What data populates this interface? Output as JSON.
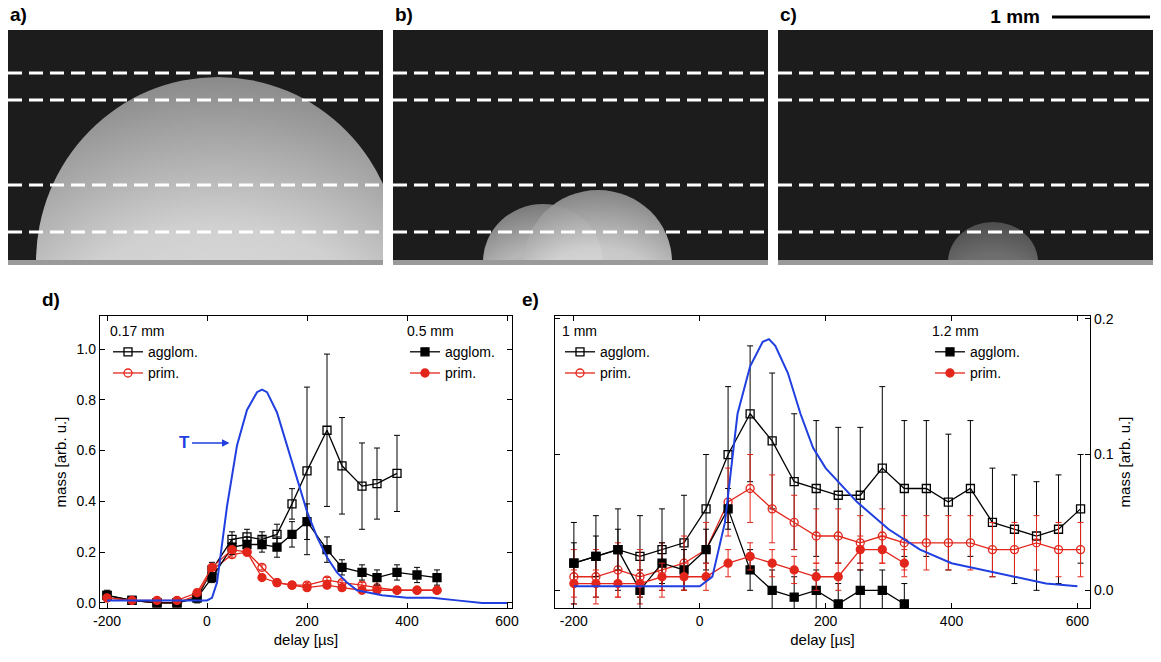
{
  "images": {
    "panels": [
      {
        "label": "a)"
      },
      {
        "label": "b)"
      },
      {
        "label": "c)"
      }
    ],
    "scale_bar": "1 mm"
  },
  "chart_data": [
    {
      "type": "scatter",
      "label": "d)",
      "xlabel": "delay [µs]",
      "ylabel": "mass [arb. u.]",
      "xlim": [
        -214,
        610
      ],
      "xticks": [
        -200,
        0,
        200,
        400,
        600
      ],
      "ylim": [
        -0.02,
        1.13
      ],
      "yticks": [
        {
          "value": 0,
          "label": "0.0"
        },
        0.2,
        0.4,
        0.6,
        0.8,
        {
          "value": 1,
          "label": "1.0"
        }
      ],
      "annotations": [
        {
          "text": "T",
          "x": 45,
          "y": 0.63,
          "arrow_from": [
            -30,
            0.63
          ]
        }
      ],
      "series": [
        {
          "name": "agglom.",
          "group": "0.17 mm",
          "color": "#000000",
          "marker": "square-open",
          "x": [
            -200,
            -150,
            -100,
            -60,
            -20,
            10,
            50,
            80,
            110,
            140,
            170,
            200,
            240,
            270,
            310,
            340,
            380
          ],
          "values": [
            0.03,
            0.01,
            0.0,
            0.0,
            0.02,
            0.13,
            0.25,
            0.26,
            0.25,
            0.27,
            0.39,
            0.52,
            0.68,
            0.54,
            0.46,
            0.47,
            0.51
          ],
          "errors": [
            0.02,
            0.01,
            0.01,
            0.01,
            0.02,
            0.03,
            0.03,
            0.03,
            0.03,
            0.04,
            0.06,
            0.33,
            0.3,
            0.19,
            0.17,
            0.14,
            0.15
          ]
        },
        {
          "name": "prim.",
          "group": "0.17 mm",
          "color": "#e3261b",
          "marker": "circle-open",
          "x": [
            -200,
            -150,
            -100,
            -60,
            -20,
            10,
            50,
            80,
            110,
            140,
            170,
            200,
            240,
            270,
            310,
            340,
            380,
            420,
            460
          ],
          "values": [
            0.02,
            0.01,
            0.0,
            0.0,
            0.03,
            0.13,
            0.19,
            0.2,
            0.14,
            0.08,
            0.07,
            0.07,
            0.09,
            0.08,
            0.07,
            0.06,
            0.05,
            0.05,
            0.05
          ],
          "errors": [
            0.01,
            0.01,
            0.01,
            0.01,
            0.01,
            0.01,
            0.01,
            0.01,
            0.01,
            0.01,
            0.01,
            0.01,
            0.01,
            0.01,
            0.01,
            0.01,
            0.01,
            0.01,
            0.01
          ]
        },
        {
          "name": "agglom.",
          "group": "0.5 mm",
          "color": "#000000",
          "marker": "square",
          "x": [
            -200,
            -150,
            -100,
            -60,
            -20,
            10,
            50,
            80,
            110,
            140,
            170,
            200,
            240,
            270,
            310,
            340,
            380,
            420,
            460
          ],
          "values": [
            0.03,
            0.01,
            0.0,
            0.0,
            0.02,
            0.1,
            0.22,
            0.23,
            0.23,
            0.22,
            0.27,
            0.32,
            0.21,
            0.14,
            0.12,
            0.1,
            0.12,
            0.11,
            0.1
          ],
          "errors": [
            0.01,
            0.01,
            0.01,
            0.01,
            0.01,
            0.02,
            0.03,
            0.03,
            0.03,
            0.04,
            0.05,
            0.07,
            0.05,
            0.03,
            0.03,
            0.03,
            0.03,
            0.03,
            0.03
          ]
        },
        {
          "name": "prim.",
          "group": "0.5 mm",
          "color": "#e3261b",
          "marker": "circle",
          "x": [
            -200,
            -150,
            -100,
            -60,
            -20,
            10,
            50,
            80,
            110,
            140,
            170,
            200,
            240,
            270,
            310,
            340,
            380,
            420,
            460
          ],
          "values": [
            0.02,
            0.01,
            0.01,
            0.01,
            0.04,
            0.14,
            0.21,
            0.2,
            0.1,
            0.08,
            0.07,
            0.06,
            0.07,
            0.06,
            0.05,
            0.05,
            0.05,
            0.05,
            0.05
          ],
          "errors": [
            0.01,
            0.01,
            0.01,
            0.01,
            0.01,
            0.01,
            0.01,
            0.01,
            0.01,
            0.01,
            0.01,
            0.01,
            0.01,
            0.01,
            0.01,
            0.01,
            0.01,
            0.01,
            0.01
          ]
        },
        {
          "type": "line",
          "color": "#1f3fe0",
          "x": [
            -200,
            -100,
            0,
            10,
            20,
            40,
            60,
            80,
            100,
            110,
            120,
            140,
            160,
            180,
            200,
            220,
            240,
            260,
            280,
            300,
            350,
            400,
            450,
            500,
            550,
            600
          ],
          "values": [
            0.01,
            0.01,
            0.01,
            0.02,
            0.08,
            0.38,
            0.62,
            0.76,
            0.83,
            0.84,
            0.83,
            0.75,
            0.62,
            0.48,
            0.36,
            0.26,
            0.18,
            0.12,
            0.08,
            0.05,
            0.03,
            0.02,
            0.02,
            0.01,
            0.0,
            0.0
          ]
        }
      ]
    },
    {
      "type": "scatter",
      "label": "e)",
      "xlabel": "delay [µs]",
      "y2label": "mass [arb. u.]",
      "xlim": [
        -230,
        620
      ],
      "xticks": [
        -200,
        0,
        200,
        400,
        600
      ],
      "y2lim": [
        -0.013,
        0.202
      ],
      "y2ticks": [
        {
          "value": 0,
          "label": "0.0"
        },
        0.1,
        0.2
      ],
      "series": [
        {
          "name": "agglom.",
          "group": "1 mm",
          "axis": "y2",
          "color": "#000000",
          "marker": "square-open",
          "x": [
            -200,
            -165,
            -130,
            -95,
            -60,
            -25,
            10,
            45,
            80,
            115,
            150,
            185,
            220,
            255,
            290,
            325,
            360,
            395,
            430,
            465,
            500,
            535,
            570,
            605
          ],
          "values": [
            0.02,
            0.025,
            0.03,
            0.025,
            0.03,
            0.035,
            0.06,
            0.1,
            0.13,
            0.11,
            0.08,
            0.075,
            0.07,
            0.07,
            0.09,
            0.075,
            0.075,
            0.065,
            0.075,
            0.05,
            0.045,
            0.04,
            0.045,
            0.06
          ],
          "errors": [
            0.03,
            0.03,
            0.03,
            0.03,
            0.03,
            0.035,
            0.04,
            0.05,
            0.05,
            0.05,
            0.05,
            0.05,
            0.05,
            0.05,
            0.06,
            0.05,
            0.05,
            0.05,
            0.05,
            0.04,
            0.04,
            0.04,
            0.04,
            0.04
          ]
        },
        {
          "name": "prim.",
          "group": "1 mm",
          "axis": "y2",
          "color": "#e3261b",
          "marker": "circle-open",
          "x": [
            -200,
            -165,
            -130,
            -95,
            -60,
            -25,
            10,
            45,
            80,
            115,
            150,
            185,
            220,
            255,
            290,
            325,
            360,
            395,
            430,
            465,
            500,
            535,
            570,
            605
          ],
          "values": [
            0.01,
            0.01,
            0.015,
            0.01,
            0.015,
            0.02,
            0.03,
            0.065,
            0.075,
            0.06,
            0.05,
            0.04,
            0.04,
            0.035,
            0.04,
            0.035,
            0.035,
            0.035,
            0.035,
            0.03,
            0.03,
            0.035,
            0.03,
            0.03
          ],
          "errors": [
            0.02,
            0.02,
            0.02,
            0.02,
            0.02,
            0.02,
            0.02,
            0.025,
            0.025,
            0.025,
            0.02,
            0.02,
            0.02,
            0.02,
            0.02,
            0.02,
            0.02,
            0.02,
            0.02,
            0.02,
            0.02,
            0.02,
            0.02,
            0.02
          ]
        },
        {
          "name": "agglom.",
          "group": "1.2 mm",
          "axis": "y2",
          "color": "#000000",
          "marker": "square",
          "x": [
            -200,
            -165,
            -130,
            -95,
            -60,
            -25,
            10,
            45,
            80,
            115,
            150,
            185,
            220,
            255,
            290,
            325
          ],
          "values": [
            0.02,
            0.025,
            0.03,
            0.0,
            0.02,
            0.015,
            0.03,
            0.06,
            0.015,
            0.0,
            -0.005,
            0.0,
            -0.01,
            0.0,
            0.0,
            -0.01
          ],
          "errors": [
            0.015,
            0.015,
            0.015,
            0.015,
            0.015,
            0.015,
            0.015,
            0.015,
            0.015,
            0.015,
            0.015,
            0.015,
            0.015,
            0.015,
            0.015,
            0.015
          ]
        },
        {
          "name": "prim.",
          "group": "1.2 mm",
          "axis": "y2",
          "color": "#e3261b",
          "marker": "circle",
          "x": [
            -200,
            -165,
            -130,
            -95,
            -60,
            -25,
            10,
            45,
            80,
            115,
            150,
            185,
            220,
            255,
            290,
            325
          ],
          "values": [
            0.005,
            0.005,
            0.005,
            0.005,
            0.01,
            0.01,
            0.01,
            0.02,
            0.025,
            0.02,
            0.015,
            0.01,
            0.01,
            0.03,
            0.03,
            0.02
          ],
          "errors": [
            0.01,
            0.01,
            0.01,
            0.01,
            0.01,
            0.01,
            0.01,
            0.01,
            0.01,
            0.01,
            0.01,
            0.01,
            0.01,
            0.01,
            0.01,
            0.01
          ]
        },
        {
          "type": "line",
          "axis": "y2",
          "color": "#1f3fe0",
          "x": [
            -200,
            -100,
            0,
            20,
            40,
            60,
            80,
            100,
            110,
            120,
            140,
            160,
            180,
            200,
            250,
            300,
            350,
            400,
            450,
            500,
            550,
            600
          ],
          "values": [
            0.003,
            0.003,
            0.003,
            0.01,
            0.05,
            0.13,
            0.165,
            0.183,
            0.185,
            0.18,
            0.16,
            0.13,
            0.105,
            0.09,
            0.065,
            0.045,
            0.03,
            0.02,
            0.015,
            0.01,
            0.005,
            0.003
          ]
        }
      ]
    }
  ]
}
